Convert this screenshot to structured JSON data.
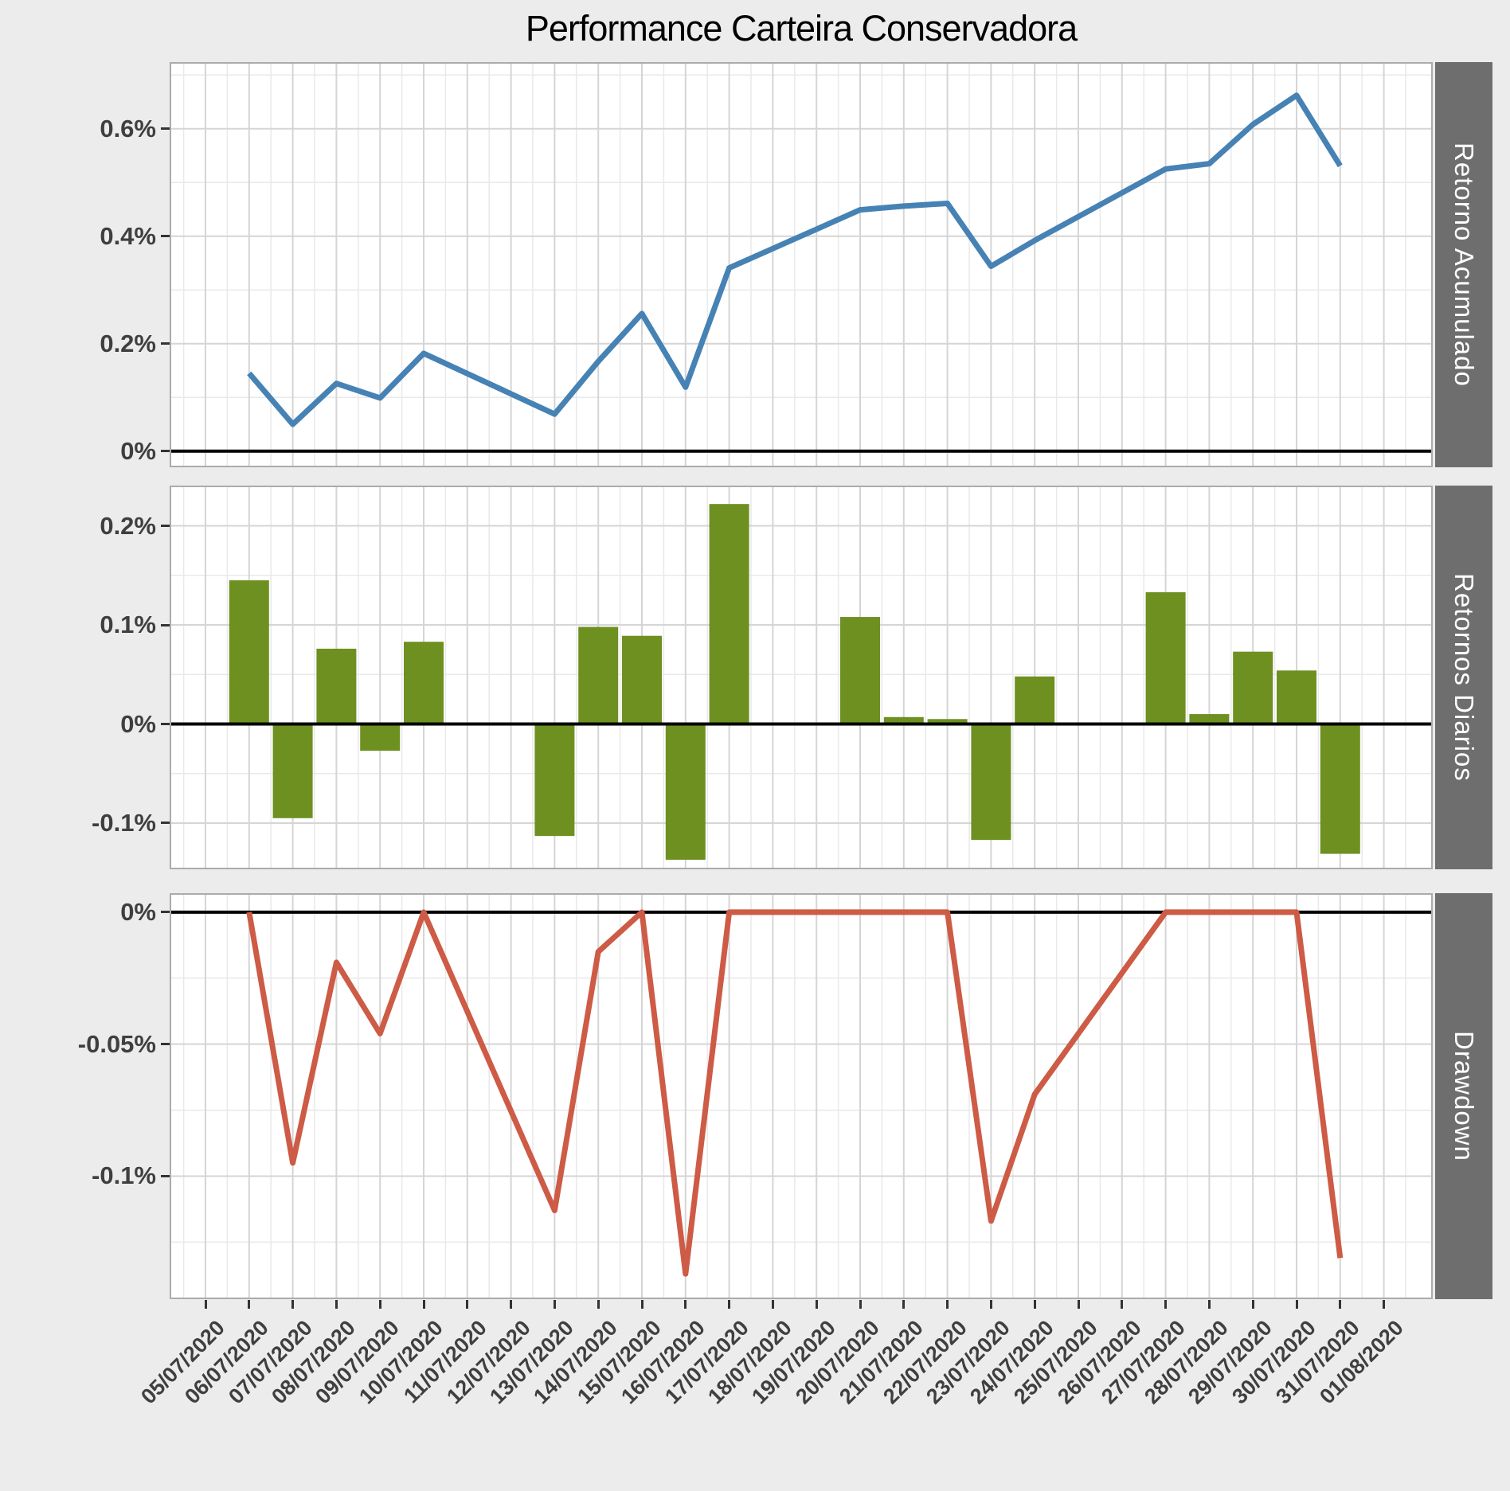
{
  "title": "Performance Carteira Conservadora",
  "colors": {
    "background": "#ECECEC",
    "panel_background": "#FFFFFF",
    "panel_border": "#ABABAB",
    "grid_major": "#D5D5D5",
    "grid_minor": "#E9E9E9",
    "zero_line": "#000000",
    "axis_text": "#3F3F3F",
    "strip_background": "#6E6E6E",
    "strip_text": "#FFFFFF",
    "accumulated_line": "#4682B4",
    "daily_bars": "#6D9021",
    "drawdown_line": "#CD5B45"
  },
  "x_axis": {
    "tick_labels": [
      "05/07/2020",
      "06/07/2020",
      "07/07/2020",
      "08/07/2020",
      "09/07/2020",
      "10/07/2020",
      "11/07/2020",
      "12/07/2020",
      "13/07/2020",
      "14/07/2020",
      "15/07/2020",
      "16/07/2020",
      "17/07/2020",
      "18/07/2020",
      "19/07/2020",
      "20/07/2020",
      "21/07/2020",
      "22/07/2020",
      "23/07/2020",
      "24/07/2020",
      "25/07/2020",
      "26/07/2020",
      "27/07/2020",
      "28/07/2020",
      "29/07/2020",
      "30/07/2020",
      "31/07/2020",
      "01/08/2020"
    ]
  },
  "chart_data": [
    {
      "type": "line",
      "facet_label": "Retorno Acumulado",
      "series_color": "#4682B4",
      "unit": "%",
      "ylim": [
        -0.027,
        0.721
      ],
      "zero_line": 0,
      "grid": true,
      "y_ticks": [
        {
          "value": 0,
          "label": "0%"
        },
        {
          "value": 0.2,
          "label": "0.2%"
        },
        {
          "value": 0.4,
          "label": "0.4%"
        },
        {
          "value": 0.6,
          "label": "0.6%"
        }
      ],
      "points": [
        {
          "date": "06/07/2020",
          "value": 0.145
        },
        {
          "date": "07/07/2020",
          "value": 0.05
        },
        {
          "date": "08/07/2020",
          "value": 0.126
        },
        {
          "date": "09/07/2020",
          "value": 0.099
        },
        {
          "date": "10/07/2020",
          "value": 0.182
        },
        {
          "date": "13/07/2020",
          "value": 0.069
        },
        {
          "date": "14/07/2020",
          "value": 0.167
        },
        {
          "date": "15/07/2020",
          "value": 0.256
        },
        {
          "date": "16/07/2020",
          "value": 0.119
        },
        {
          "date": "17/07/2020",
          "value": 0.341
        },
        {
          "date": "20/07/2020",
          "value": 0.449
        },
        {
          "date": "21/07/2020",
          "value": 0.456
        },
        {
          "date": "22/07/2020",
          "value": 0.461
        },
        {
          "date": "23/07/2020",
          "value": 0.344
        },
        {
          "date": "24/07/2020",
          "value": 0.392
        },
        {
          "date": "27/07/2020",
          "value": 0.525
        },
        {
          "date": "28/07/2020",
          "value": 0.535
        },
        {
          "date": "29/07/2020",
          "value": 0.608
        },
        {
          "date": "30/07/2020",
          "value": 0.662
        },
        {
          "date": "31/07/2020",
          "value": 0.531
        }
      ]
    },
    {
      "type": "bar",
      "facet_label": "Retornos Diarios",
      "series_color": "#6D9021",
      "unit": "%",
      "ylim": [
        -0.145,
        0.239
      ],
      "zero_line": 0,
      "grid": true,
      "y_ticks": [
        {
          "value": -0.1,
          "label": "-0.1%"
        },
        {
          "value": 0,
          "label": "0%"
        },
        {
          "value": 0.1,
          "label": "0.1%"
        },
        {
          "value": 0.2,
          "label": "0.2%"
        }
      ],
      "points": [
        {
          "date": "06/07/2020",
          "value": 0.145
        },
        {
          "date": "07/07/2020",
          "value": -0.095
        },
        {
          "date": "08/07/2020",
          "value": 0.076
        },
        {
          "date": "09/07/2020",
          "value": -0.027
        },
        {
          "date": "10/07/2020",
          "value": 0.083
        },
        {
          "date": "13/07/2020",
          "value": -0.113
        },
        {
          "date": "14/07/2020",
          "value": 0.098
        },
        {
          "date": "15/07/2020",
          "value": 0.089
        },
        {
          "date": "16/07/2020",
          "value": -0.137
        },
        {
          "date": "17/07/2020",
          "value": 0.222
        },
        {
          "date": "20/07/2020",
          "value": 0.108
        },
        {
          "date": "21/07/2020",
          "value": 0.007
        },
        {
          "date": "22/07/2020",
          "value": 0.005
        },
        {
          "date": "23/07/2020",
          "value": -0.117
        },
        {
          "date": "24/07/2020",
          "value": 0.048
        },
        {
          "date": "27/07/2020",
          "value": 0.133
        },
        {
          "date": "28/07/2020",
          "value": 0.01
        },
        {
          "date": "29/07/2020",
          "value": 0.073
        },
        {
          "date": "30/07/2020",
          "value": 0.054
        },
        {
          "date": "31/07/2020",
          "value": -0.131
        }
      ]
    },
    {
      "type": "line",
      "facet_label": "Drawdown",
      "series_color": "#CD5B45",
      "unit": "%",
      "ylim": [
        -0.146,
        0.0066
      ],
      "zero_line": 0,
      "grid": true,
      "y_ticks": [
        {
          "value": 0,
          "label": "0%"
        },
        {
          "value": -0.05,
          "label": "-0.05%"
        },
        {
          "value": -0.1,
          "label": "-0.1%"
        }
      ],
      "points": [
        {
          "date": "06/07/2020",
          "value": 0
        },
        {
          "date": "07/07/2020",
          "value": -0.095
        },
        {
          "date": "08/07/2020",
          "value": -0.019
        },
        {
          "date": "09/07/2020",
          "value": -0.046
        },
        {
          "date": "10/07/2020",
          "value": 0
        },
        {
          "date": "13/07/2020",
          "value": -0.113
        },
        {
          "date": "14/07/2020",
          "value": -0.015
        },
        {
          "date": "15/07/2020",
          "value": 0
        },
        {
          "date": "16/07/2020",
          "value": -0.137
        },
        {
          "date": "17/07/2020",
          "value": 0
        },
        {
          "date": "20/07/2020",
          "value": 0
        },
        {
          "date": "21/07/2020",
          "value": 0
        },
        {
          "date": "22/07/2020",
          "value": 0
        },
        {
          "date": "23/07/2020",
          "value": -0.117
        },
        {
          "date": "24/07/2020",
          "value": -0.069
        },
        {
          "date": "27/07/2020",
          "value": 0
        },
        {
          "date": "28/07/2020",
          "value": 0
        },
        {
          "date": "29/07/2020",
          "value": 0
        },
        {
          "date": "30/07/2020",
          "value": 0
        },
        {
          "date": "31/07/2020",
          "value": -0.131
        }
      ]
    }
  ]
}
